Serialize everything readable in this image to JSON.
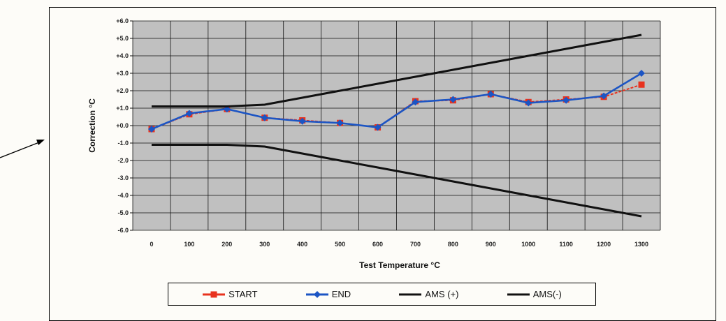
{
  "chart_data": {
    "type": "line",
    "x": [
      0,
      100,
      200,
      300,
      400,
      500,
      600,
      700,
      800,
      900,
      1000,
      1100,
      1200,
      1300
    ],
    "xlabel": "Test Temperature °C",
    "ylabel": "Correction °C",
    "ylim": [
      -6,
      6
    ],
    "y_ticks": [
      "+6.0",
      "+5.0",
      "+4.0",
      "+3.0",
      "+2.0",
      "+1.0",
      "+0.0",
      "-1.0",
      "-2.0",
      "-3.0",
      "-4.0",
      "-5.0",
      "-6.0"
    ],
    "x_ticks": [
      "0",
      "100",
      "200",
      "300",
      "400",
      "500",
      "600",
      "700",
      "800",
      "900",
      "1000",
      "1100",
      "1200",
      "1300"
    ],
    "grid": true,
    "plot_background": "#c0c0c0",
    "legend_position": "bottom",
    "series": [
      {
        "name": "START",
        "color": "#e8321e",
        "marker": "square",
        "values": [
          -0.2,
          0.65,
          0.95,
          0.45,
          0.3,
          0.15,
          -0.1,
          1.4,
          1.45,
          1.8,
          1.35,
          1.5,
          1.65,
          2.35
        ]
      },
      {
        "name": "END",
        "color": "#1c55c4",
        "marker": "diamond",
        "values": [
          -0.2,
          0.7,
          0.95,
          0.45,
          0.25,
          0.15,
          -0.1,
          1.35,
          1.5,
          1.8,
          1.3,
          1.45,
          1.7,
          3.0
        ]
      },
      {
        "name": "AMS (+)",
        "color": "#111111",
        "marker": "none",
        "values": [
          1.1,
          1.1,
          1.1,
          1.2,
          1.6,
          2.0,
          2.4,
          2.8,
          3.2,
          3.6,
          4.0,
          4.4,
          4.8,
          5.2
        ]
      },
      {
        "name": "AMS(-)",
        "color": "#111111",
        "marker": "none",
        "values": [
          -1.1,
          -1.1,
          -1.1,
          -1.2,
          -1.6,
          -2.0,
          -2.4,
          -2.8,
          -3.2,
          -3.6,
          -4.0,
          -4.4,
          -4.8,
          -5.2
        ]
      }
    ]
  }
}
